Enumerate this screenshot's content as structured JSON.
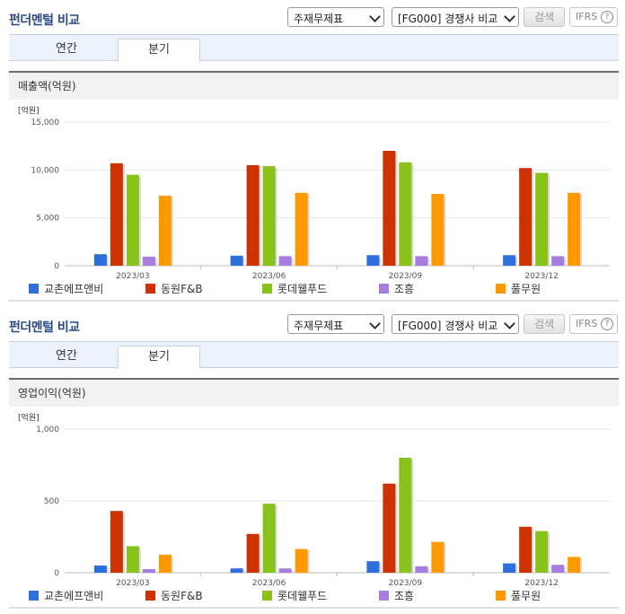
{
  "sections": [
    {
      "title": "펀더멘털 비교",
      "select_report": "주재무제표",
      "select_compare": "[FG000] 경쟁사 비교",
      "search_label": "검색",
      "ifrs_label": "IFRS",
      "ifrs_help": "?",
      "tabs": [
        "연간",
        "분기"
      ],
      "active_tab": "분기",
      "metric": "매출액(억원)"
    },
    {
      "title": "펀더멘털 비교",
      "select_report": "주재무제표",
      "select_compare": "[FG000] 경쟁사 비교",
      "search_label": "검색",
      "ifrs_label": "IFRS",
      "ifrs_help": "?",
      "tabs": [
        "연간",
        "분기"
      ],
      "active_tab": "분기",
      "metric": "영업이익(억원)"
    }
  ],
  "chart_data": [
    {
      "type": "bar",
      "title": "매출액(억원)",
      "unit": "[억원]",
      "categories": [
        "2023/03",
        "2023/06",
        "2023/09",
        "2023/12"
      ],
      "ylim": [
        0,
        15000
      ],
      "yticks": [
        "0",
        "5,000",
        "10,000",
        "15,000"
      ],
      "yticks_values": [
        0,
        5000,
        10000,
        15000
      ],
      "grid": true,
      "legend_position": "bottom",
      "series": [
        {
          "name": "교촌에프앤비",
          "color": "#2f6fdc",
          "values": [
            1200,
            1050,
            1100,
            1100
          ]
        },
        {
          "name": "동원F&B",
          "color": "#cc3300",
          "values": [
            10700,
            10500,
            12000,
            10200
          ]
        },
        {
          "name": "롯데웰푸드",
          "color": "#88c21a",
          "values": [
            9500,
            10400,
            10800,
            9700
          ]
        },
        {
          "name": "조흥",
          "color": "#a77ee0",
          "values": [
            950,
            1000,
            1000,
            1000
          ]
        },
        {
          "name": "풀무원",
          "color": "#ff9900",
          "values": [
            7300,
            7600,
            7500,
            7600
          ]
        }
      ]
    },
    {
      "type": "bar",
      "title": "영업이익(억원)",
      "unit": "[억원]",
      "categories": [
        "2023/03",
        "2023/06",
        "2023/09",
        "2023/12"
      ],
      "ylim": [
        0,
        1000
      ],
      "yticks": [
        "0",
        "500",
        "1,000"
      ],
      "yticks_values": [
        0,
        500,
        1000
      ],
      "grid": true,
      "legend_position": "bottom",
      "series": [
        {
          "name": "교촌에프앤비",
          "color": "#2f6fdc",
          "values": [
            50,
            30,
            80,
            65
          ]
        },
        {
          "name": "동원F&B",
          "color": "#cc3300",
          "values": [
            430,
            270,
            620,
            320
          ]
        },
        {
          "name": "롯데웰푸드",
          "color": "#88c21a",
          "values": [
            185,
            480,
            800,
            290
          ]
        },
        {
          "name": "조흥",
          "color": "#a77ee0",
          "values": [
            25,
            30,
            45,
            55
          ]
        },
        {
          "name": "풀무원",
          "color": "#ff9900",
          "values": [
            125,
            165,
            215,
            110
          ]
        }
      ]
    }
  ]
}
